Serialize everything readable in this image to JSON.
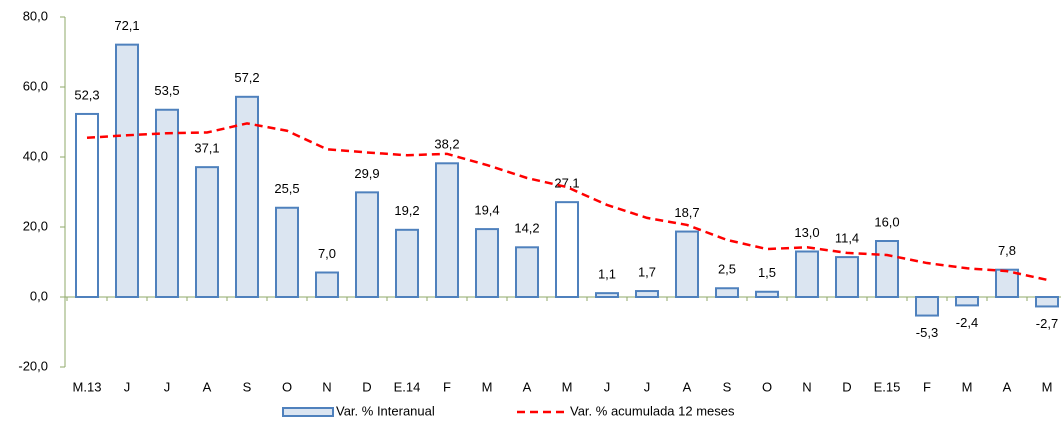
{
  "chart_data": {
    "type": "bar_line",
    "categories": [
      "M.13",
      "J",
      "J",
      "A",
      "S",
      "O",
      "N",
      "D",
      "E.14",
      "F",
      "M",
      "A",
      "M",
      "J",
      "J",
      "A",
      "S",
      "O",
      "N",
      "D",
      "E.15",
      "F",
      "M",
      "A",
      "M"
    ],
    "series": [
      {
        "name": "Var. % Interanual",
        "type": "bar",
        "color": "#dbe5f1",
        "edge_color": "#4f81bd",
        "colors": [
          "#ffffff",
          "#dbe5f1",
          "#dbe5f1",
          "#dbe5f1",
          "#dbe5f1",
          "#dbe5f1",
          "#dbe5f1",
          "#dbe5f1",
          "#dbe5f1",
          "#dbe5f1",
          "#dbe5f1",
          "#dbe5f1",
          "#ffffff",
          "#dbe5f1",
          "#dbe5f1",
          "#dbe5f1",
          "#dbe5f1",
          "#dbe5f1",
          "#dbe5f1",
          "#dbe5f1",
          "#dbe5f1",
          "#dbe5f1",
          "#dbe5f1",
          "#dbe5f1",
          "#dbe5f1"
        ],
        "values": [
          52.3,
          72.1,
          53.5,
          37.1,
          57.2,
          25.5,
          7.0,
          29.9,
          19.2,
          38.2,
          19.4,
          14.2,
          27.1,
          1.1,
          1.7,
          18.7,
          2.5,
          1.5,
          13.0,
          11.4,
          16.0,
          -5.3,
          -2.4,
          7.8,
          -2.7
        ],
        "value_labels": [
          "52,3",
          "72,1",
          "53,5",
          "37,1",
          "57,2",
          "25,5",
          "7,0",
          "29,9",
          "19,2",
          "38,2",
          "19,4",
          "14,2",
          "27,1",
          "1,1",
          "1,7",
          "18,7",
          "2,5",
          "1,5",
          "13,0",
          "11,4",
          "16,0",
          "-5,3",
          "-2,4",
          "7,8",
          "-2,7"
        ]
      },
      {
        "name": "Var. % acumulada 12 meses",
        "type": "line",
        "color": "#ff0000",
        "dashed": true,
        "values": [
          45.5,
          46.2,
          46.8,
          47.0,
          49.6,
          47.5,
          42.2,
          41.3,
          40.5,
          40.9,
          37.7,
          34.0,
          31.4,
          26.3,
          22.6,
          20.6,
          16.3,
          13.7,
          14.2,
          12.6,
          12.0,
          9.7,
          8.2,
          7.4,
          4.9
        ]
      }
    ],
    "ylim": [
      -20,
      80
    ],
    "yticks": [
      {
        "value": -20,
        "label": "-20,0"
      },
      {
        "value": 0,
        "label": "0,0"
      },
      {
        "value": 20,
        "label": "20,0"
      },
      {
        "value": 40,
        "label": "40,0"
      },
      {
        "value": 60,
        "label": "60,0"
      },
      {
        "value": 80,
        "label": "80,0"
      }
    ],
    "axis_color": "#8fa86a"
  }
}
